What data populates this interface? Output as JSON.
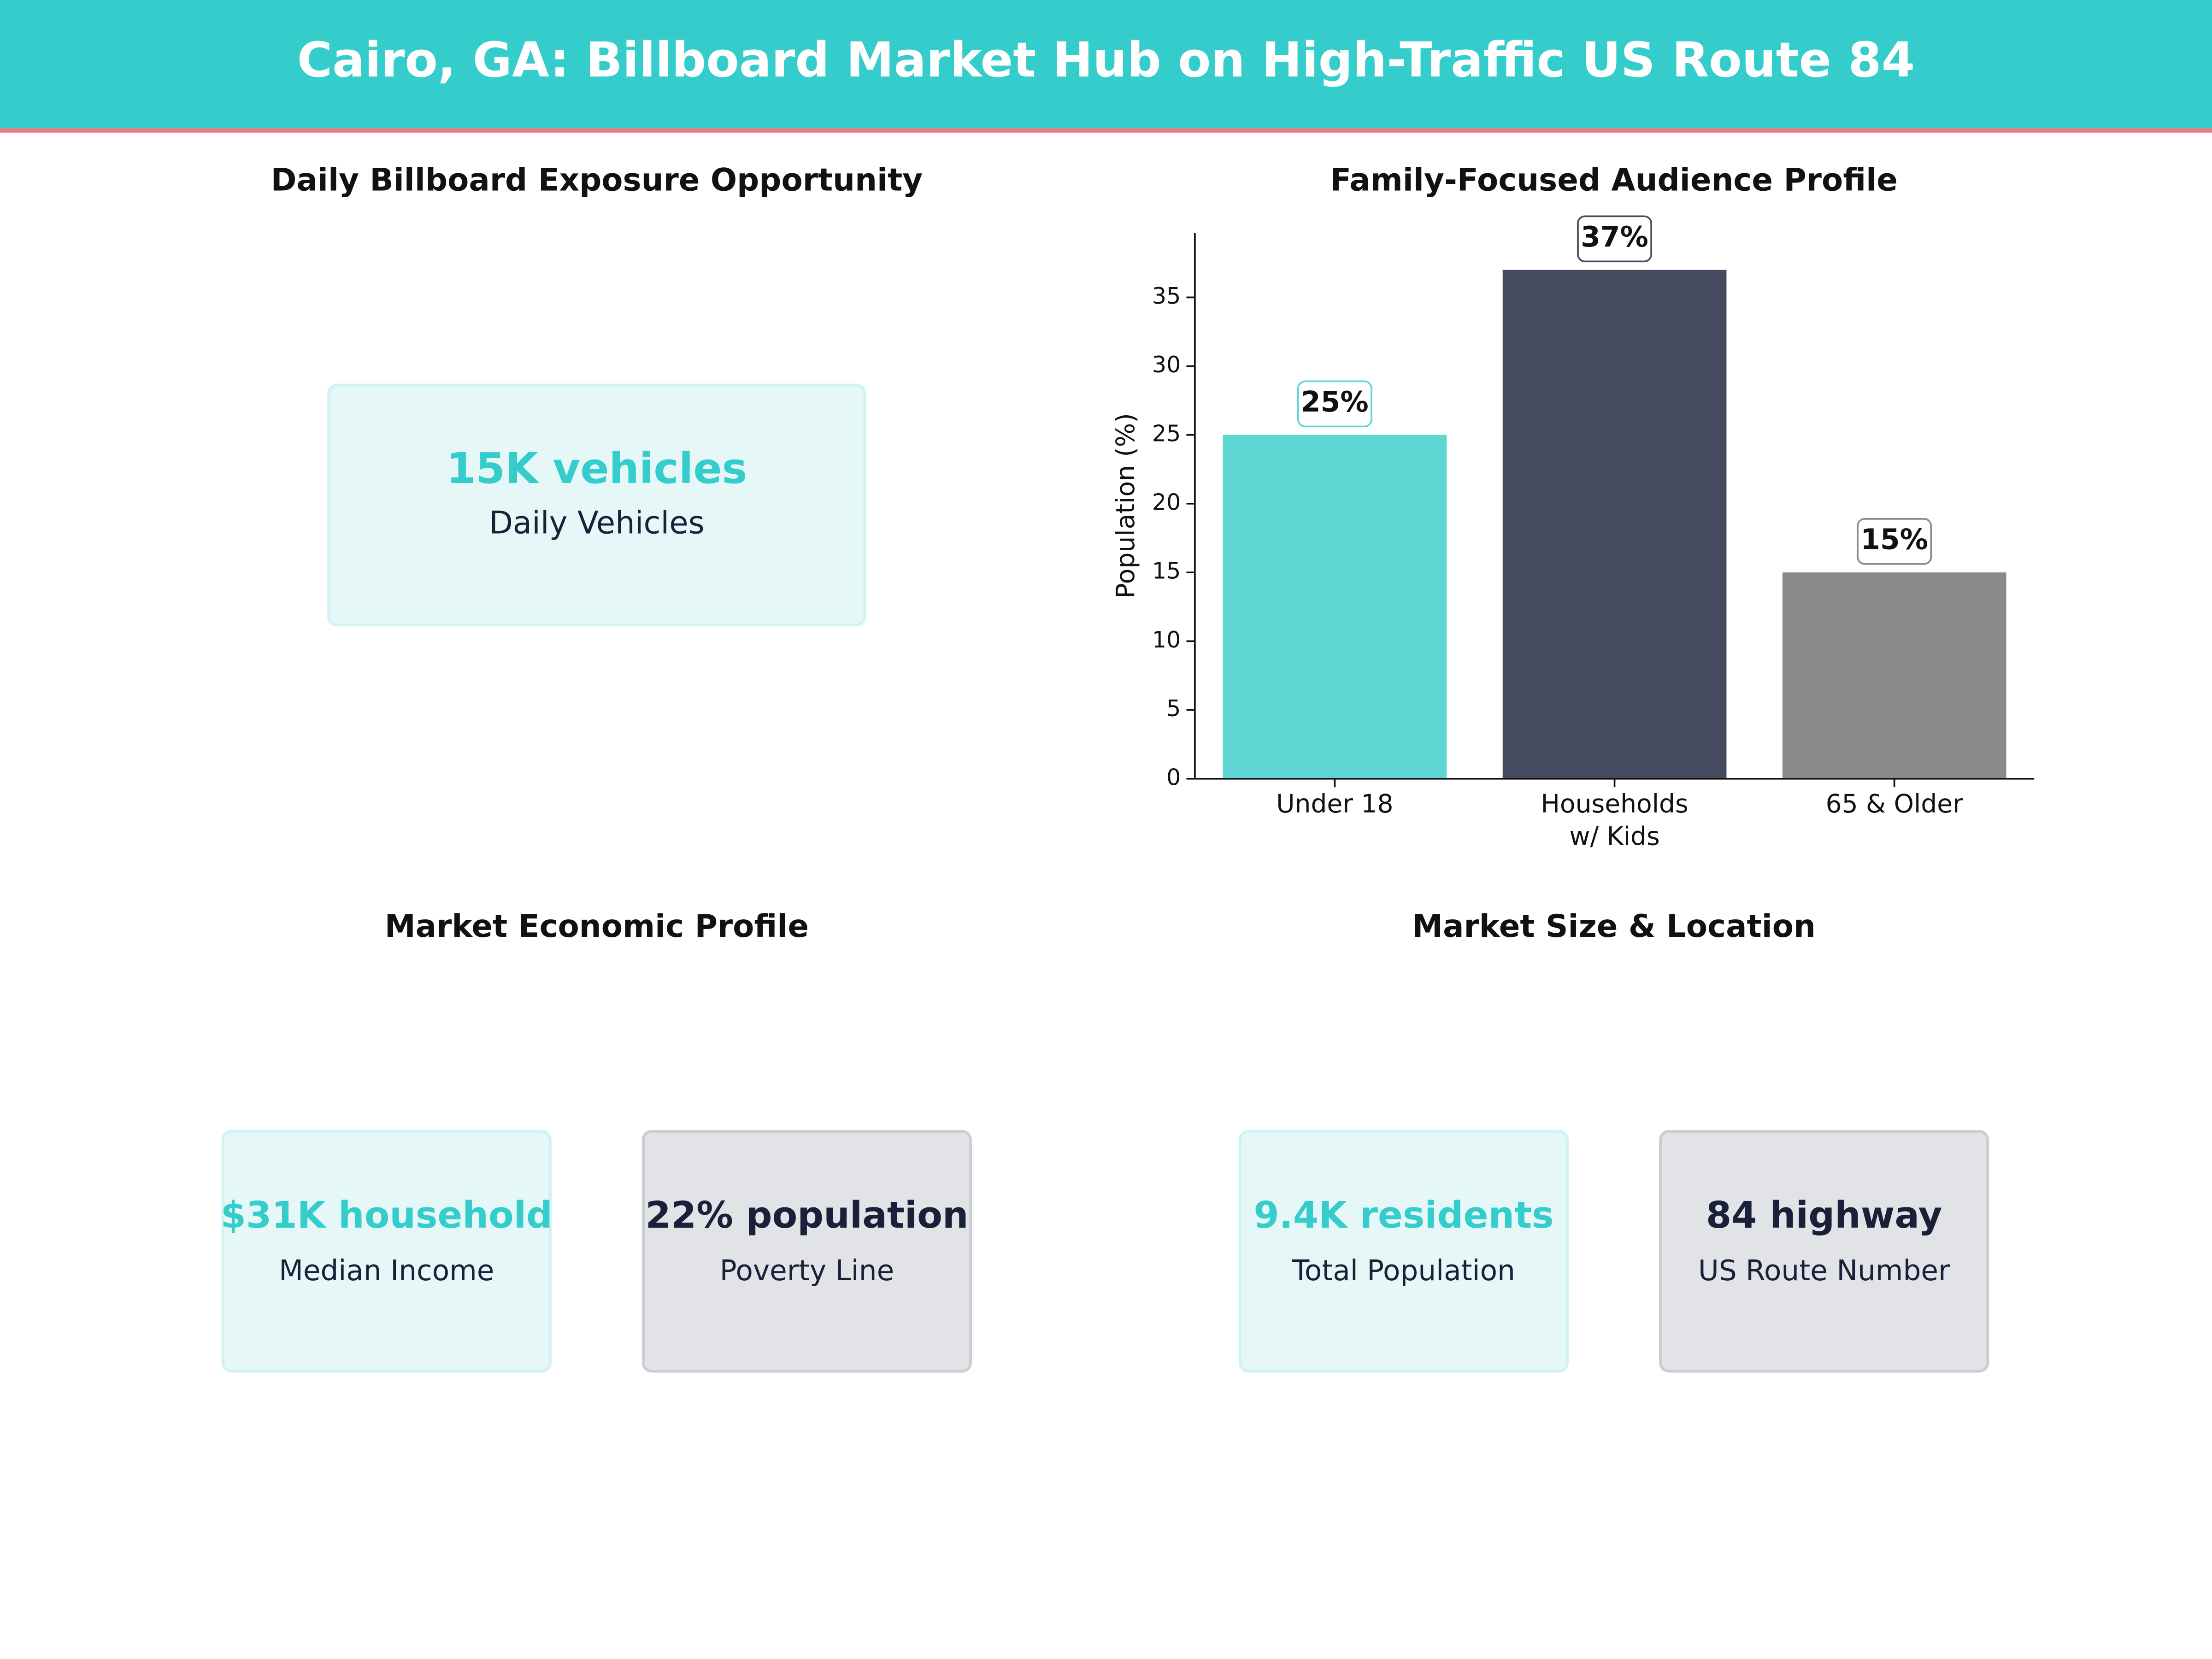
{
  "header": {
    "title": "Cairo, GA: Billboard Market Hub on High-Traffic US Route 84"
  },
  "panels": [
    {
      "title": "Daily Billboard Exposure Opportunity",
      "kpis": [
        {
          "value": "15K vehicles",
          "label": "Daily Vehicles",
          "color": "#35cccc"
        }
      ]
    },
    {
      "title": "Market Economic Profile",
      "kpis": [
        {
          "value": "$31K household",
          "label": "Median Income",
          "color": "#35cccc"
        },
        {
          "value": "22% population",
          "label": "Poverty Line",
          "color": "#1a1f3a"
        }
      ]
    },
    {
      "title": "Market Size & Location",
      "kpis": [
        {
          "value": "9.4K residents",
          "label": "Total Population",
          "color": "#35cccc"
        },
        {
          "value": "84 highway",
          "label": "US Route Number",
          "color": "#1a1f3a"
        }
      ]
    }
  ],
  "chart_data": {
    "type": "bar",
    "title": "Family-Focused Audience Profile",
    "ylabel": "Population (%)",
    "categories": [
      "Under 18",
      "Households\nw/ Kids",
      "65 & Older"
    ],
    "values": [
      25,
      37,
      15
    ],
    "value_labels": [
      "25%",
      "37%",
      "15%"
    ],
    "colors": [
      "#5dd6d4",
      "#454a5e",
      "#8a8a8a"
    ],
    "ylim": [
      0,
      39.7
    ],
    "yticks": [
      0,
      5,
      10,
      15,
      20,
      25,
      30,
      35
    ]
  }
}
